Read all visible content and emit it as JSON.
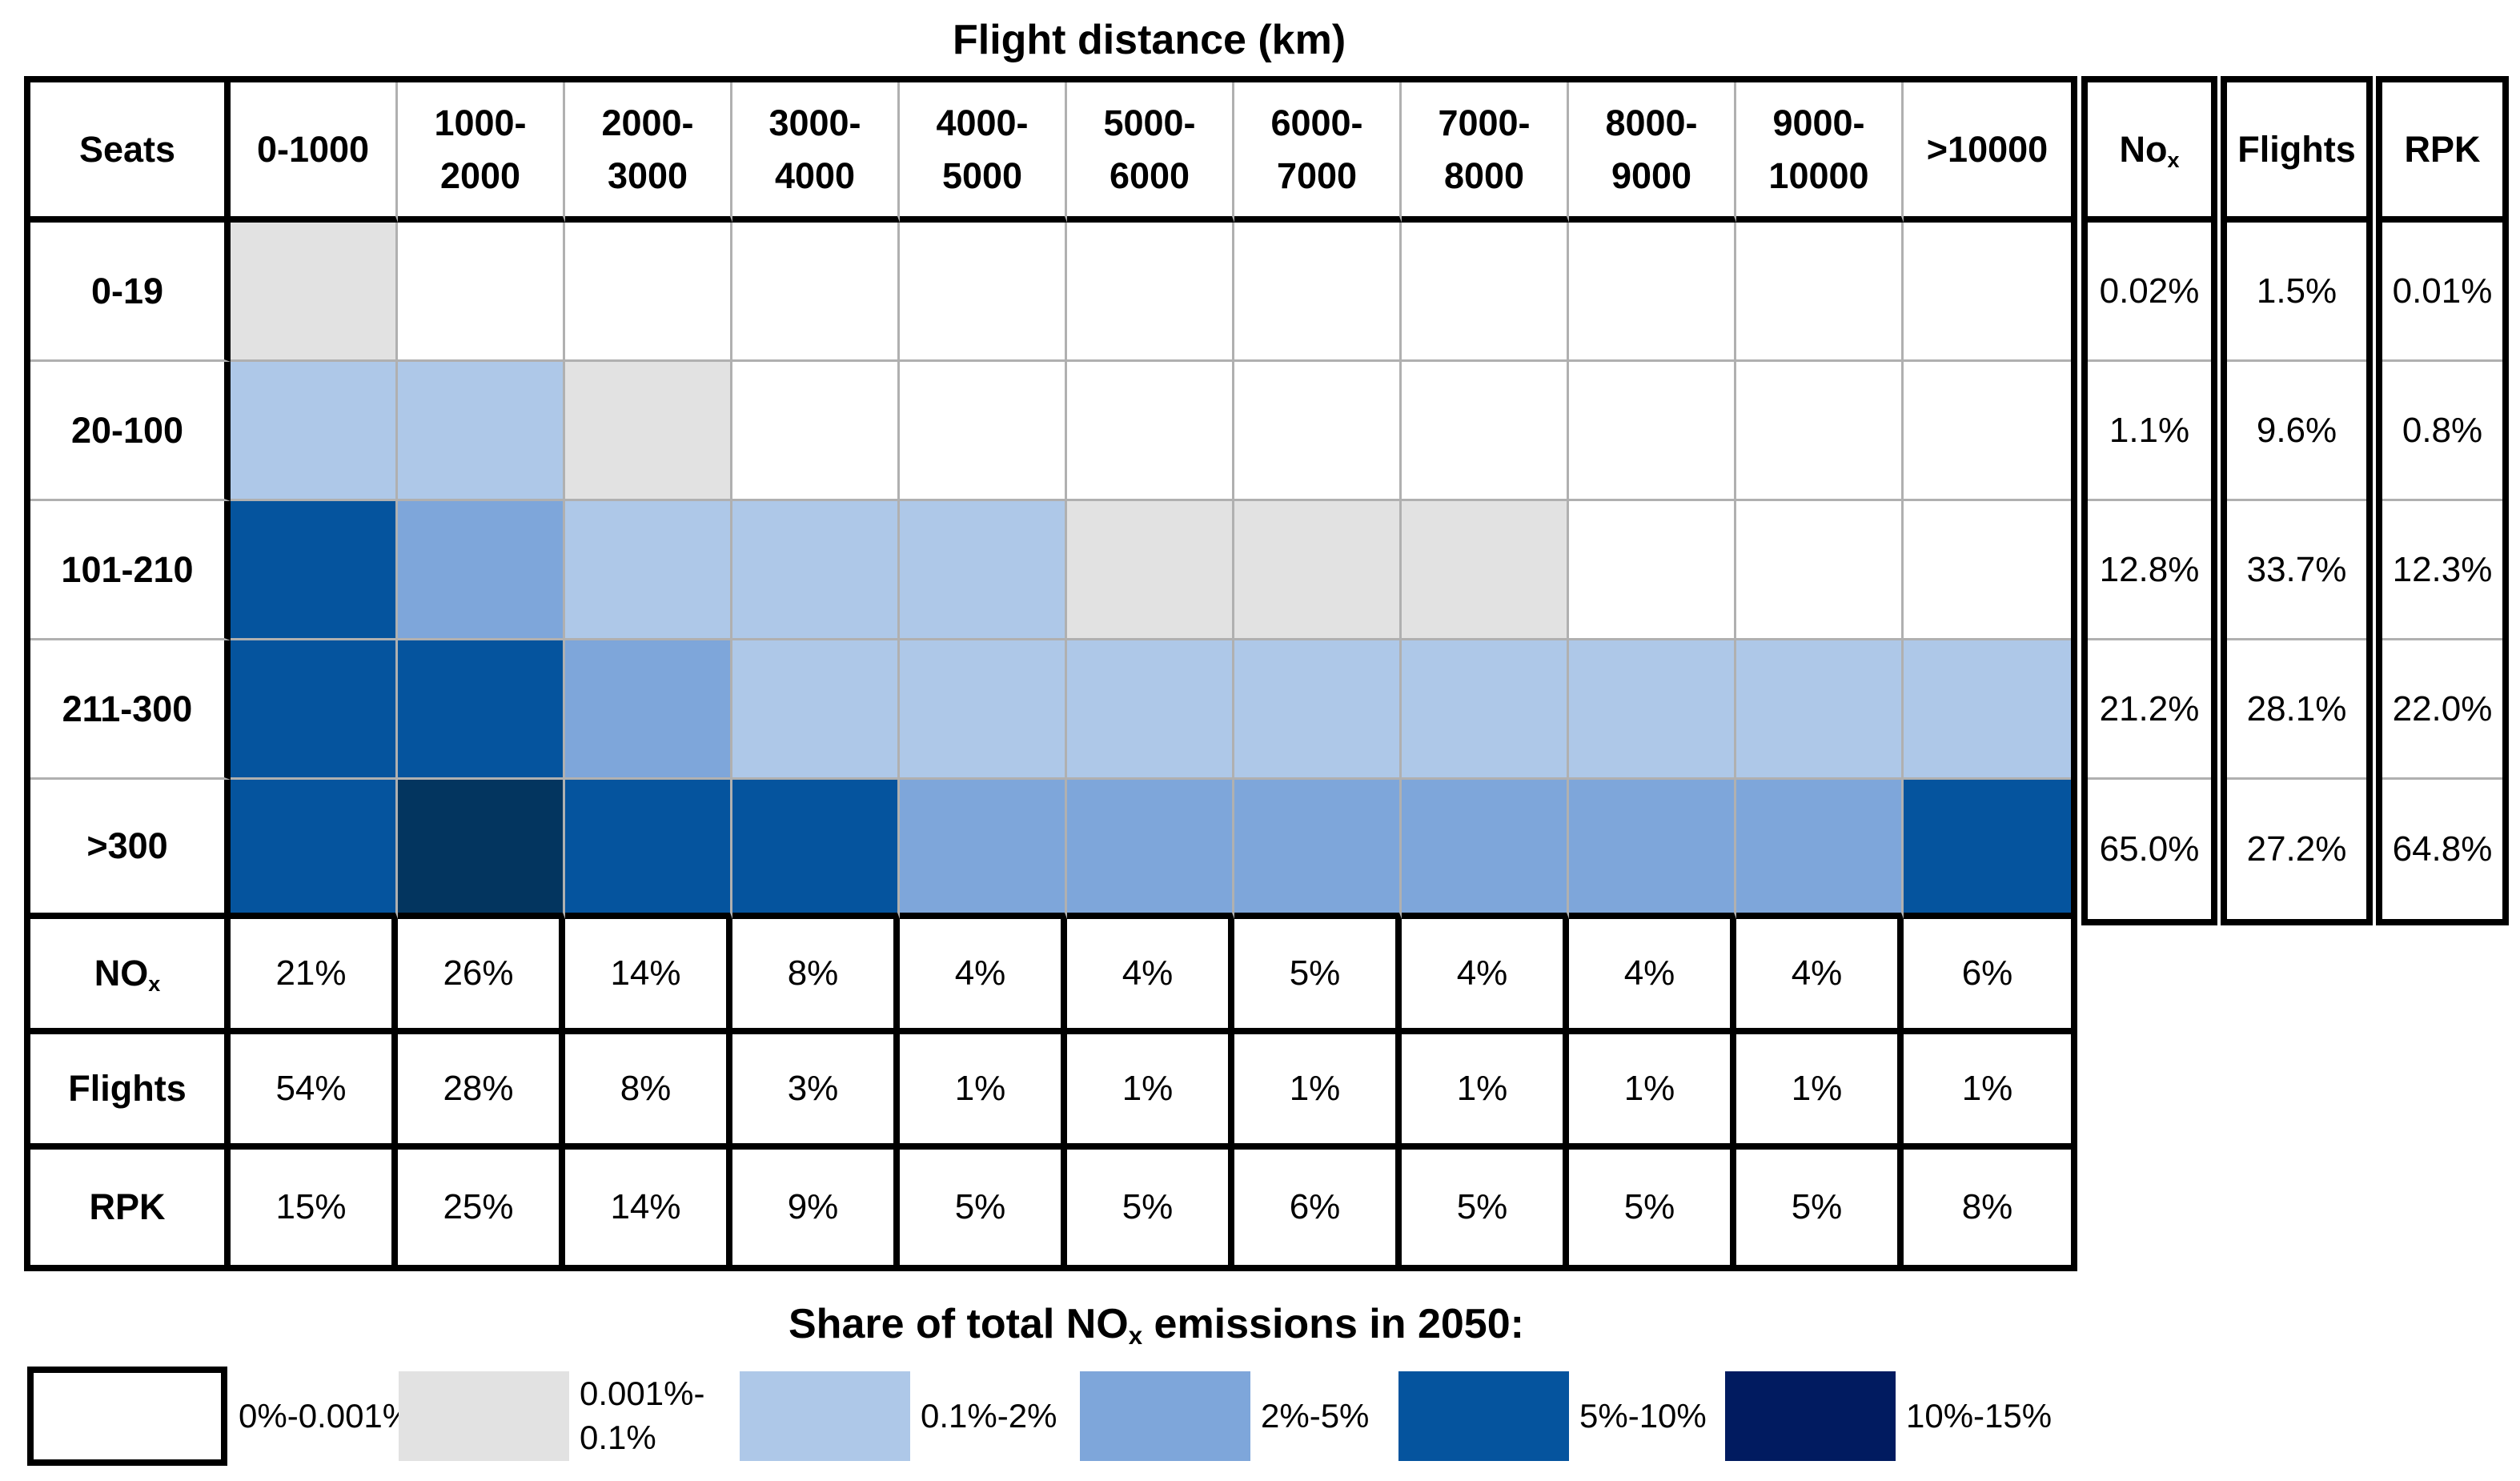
{
  "chart_data": {
    "type": "heatmap",
    "title": "Flight distance (km)",
    "corner_label": "Seats",
    "x_axis_label": "Flight distance (km)",
    "y_axis_label": "Seats",
    "x_categories": [
      "0-1000",
      "1000-\n2000",
      "2000-\n3000",
      "3000-\n4000",
      "4000-\n5000",
      "5000-\n6000",
      "6000-\n7000",
      "7000-\n8000",
      "8000-\n9000",
      "9000-\n10000",
      ">10000"
    ],
    "y_categories": [
      "0-19",
      "20-100",
      "101-210",
      "211-300",
      ">300"
    ],
    "bins": [
      {
        "key": "b0",
        "label": "0%-0.001%",
        "color": "#ffffff",
        "swatch_border": true
      },
      {
        "key": "b1",
        "label": "0.001%-\n0.1%",
        "color": "#e2e2e2"
      },
      {
        "key": "b2",
        "label": "0.1%-2%",
        "color": "#aec8e8"
      },
      {
        "key": "b3",
        "label": "2%-5%",
        "color": "#7ea6da"
      },
      {
        "key": "b4",
        "label": "5%-10%",
        "color": "#05549e"
      },
      {
        "key": "b5",
        "label": "10%-15%",
        "color": "#011b60",
        "cell_color": "#03355f"
      }
    ],
    "cells": [
      [
        "b1",
        "b0",
        "b0",
        "b0",
        "b0",
        "b0",
        "b0",
        "b0",
        "b0",
        "b0",
        "b0"
      ],
      [
        "b2",
        "b2",
        "b1",
        "b0",
        "b0",
        "b0",
        "b0",
        "b0",
        "b0",
        "b0",
        "b0"
      ],
      [
        "b4",
        "b3",
        "b2",
        "b2",
        "b2",
        "b1",
        "b1",
        "b1",
        "b0",
        "b0",
        "b0"
      ],
      [
        "b4",
        "b4",
        "b3",
        "b2",
        "b2",
        "b2",
        "b2",
        "b2",
        "b2",
        "b2",
        "b2"
      ],
      [
        "b4",
        "b5",
        "b4",
        "b4",
        "b3",
        "b3",
        "b3",
        "b3",
        "b3",
        "b3",
        "b4"
      ]
    ],
    "row_totals": {
      "headers": [
        {
          "pre": "No",
          "sub": "x"
        },
        {
          "pre": "Flights",
          "sub": ""
        },
        {
          "pre": "RPK",
          "sub": ""
        }
      ],
      "values": [
        [
          "0.02%",
          "1.5%",
          "0.01%"
        ],
        [
          "1.1%",
          "9.6%",
          "0.8%"
        ],
        [
          "12.8%",
          "33.7%",
          "12.3%"
        ],
        [
          "21.2%",
          "28.1%",
          "22.0%"
        ],
        [
          "65.0%",
          "27.2%",
          "64.8%"
        ]
      ]
    },
    "column_totals": {
      "rows": [
        {
          "label_pre": "NO",
          "label_sub": "x",
          "values": [
            "21%",
            "26%",
            "14%",
            "8%",
            "4%",
            "4%",
            "5%",
            "4%",
            "4%",
            "4%",
            "6%"
          ]
        },
        {
          "label_pre": "Flights",
          "label_sub": "",
          "values": [
            "54%",
            "28%",
            "8%",
            "3%",
            "1%",
            "1%",
            "1%",
            "1%",
            "1%",
            "1%",
            "1%"
          ]
        },
        {
          "label_pre": "RPK",
          "label_sub": "",
          "values": [
            "15%",
            "25%",
            "14%",
            "9%",
            "5%",
            "5%",
            "6%",
            "5%",
            "5%",
            "5%",
            "8%"
          ]
        }
      ]
    },
    "legend_title": {
      "pre": "Share of total NO",
      "sub": "x",
      "post": " emissions in 2050:"
    },
    "grid_line_color": "#b0b0b0",
    "border_color": "#000000"
  }
}
